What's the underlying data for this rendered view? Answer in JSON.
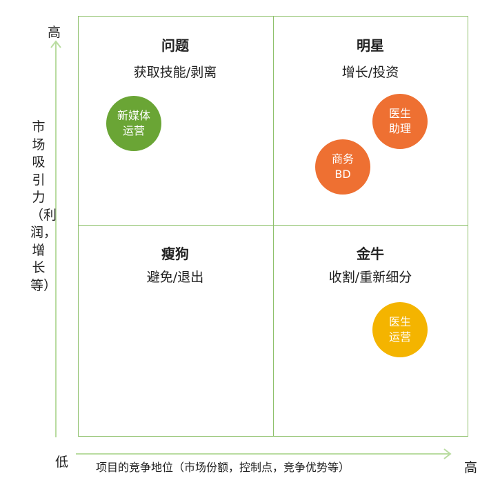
{
  "axes": {
    "y_high": "高",
    "y_label": "市场吸引力（利润，增长等）",
    "x_low": "低",
    "x_high": "高",
    "x_label": "项目的竞争地位（市场份额，控制点，竞争优势等）"
  },
  "quadrants": [
    {
      "id": "question",
      "title": "问题",
      "subtitle": "获取技能/剥离"
    },
    {
      "id": "star",
      "title": "明星",
      "subtitle": "增长/投资"
    },
    {
      "id": "dog",
      "title": "瘦狗",
      "subtitle": "避免/退出"
    },
    {
      "id": "cow",
      "title": "金牛",
      "subtitle": "收割/重新细分"
    }
  ],
  "bubbles": [
    {
      "id": "new-media",
      "label": "新媒体\n运营",
      "color": "#6aa535"
    },
    {
      "id": "doctor-assistant",
      "label": "医生\n助理",
      "color": "#ee7032"
    },
    {
      "id": "business-bd",
      "label": "商务\nBD",
      "color": "#ee7032"
    },
    {
      "id": "doctor-ops",
      "label": "医生\n运营",
      "color": "#f4b400"
    }
  ],
  "colors": {
    "grid_line": "#8dc06a",
    "axis_arrow": "#b9dca0"
  }
}
